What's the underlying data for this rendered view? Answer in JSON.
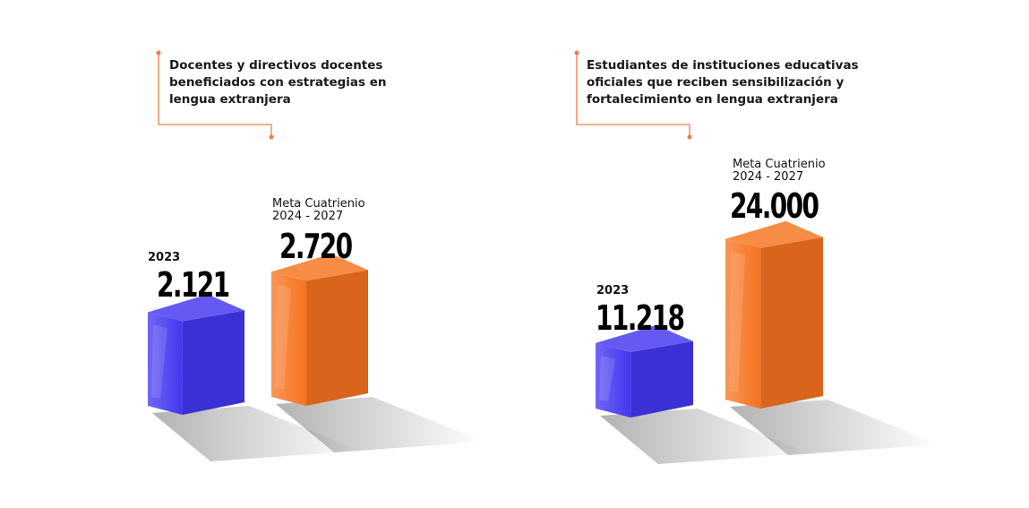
{
  "colors": {
    "baseline_bar": "#4236f0",
    "target_bar": "#f5731f",
    "bracket": "#f07b4b"
  },
  "chart_data": [
    {
      "type": "bar",
      "title": "Docentes y directivos docentes beneficiados con estrategias en lengua extranjera",
      "title_lines": [
        "Docentes y directivos docentes",
        "beneficiados con estrategias en",
        "lengua extranjera"
      ],
      "categories": [
        "2023",
        "Meta Cuatrienio 2024 - 2027"
      ],
      "category_lines": [
        [
          "2023"
        ],
        [
          "Meta Cuatrienio",
          "2024 - 2027"
        ]
      ],
      "values": [
        2121,
        2720
      ],
      "value_labels": [
        "2.121",
        "2.720"
      ],
      "xlabel": "",
      "ylabel": "",
      "grid": false
    },
    {
      "type": "bar",
      "title": "Estudiantes de instituciones educativas oficiales que reciben sensibilización y fortalecimiento en lengua extranjera",
      "title_lines": [
        "Estudiantes de instituciones educativas",
        "oficiales que reciben sensibilización y",
        "fortalecimiento en lengua extranjera"
      ],
      "categories": [
        "2023",
        "Meta Cuatrienio 2024 - 2027"
      ],
      "category_lines": [
        [
          "2023"
        ],
        [
          "Meta Cuatrienio",
          "2024 - 2027"
        ]
      ],
      "values": [
        11218,
        24000
      ],
      "value_labels": [
        "11.218",
        "24.000"
      ],
      "xlabel": "",
      "ylabel": "",
      "grid": false
    }
  ]
}
